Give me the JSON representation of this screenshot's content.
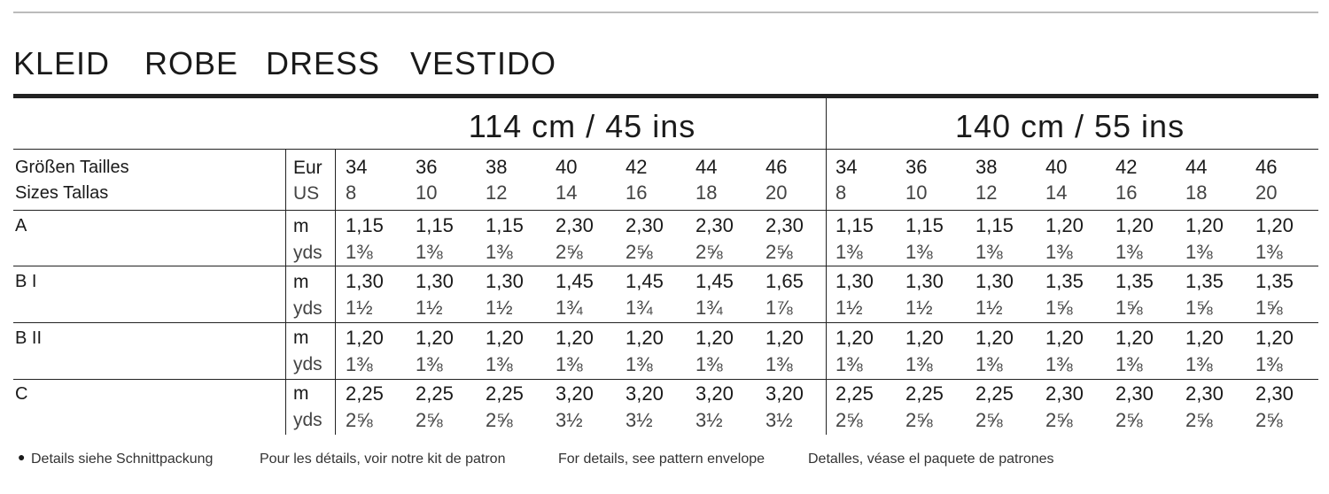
{
  "title": [
    "KLEID",
    "ROBE",
    "DRESS",
    "VESTIDO"
  ],
  "widths": [
    "114 cm / 45 ins",
    "140 cm / 55 ins"
  ],
  "size_header": {
    "label_1": "Größen Tailles",
    "label_2": "Sizes Tallas",
    "eur": "Eur",
    "us": "US"
  },
  "sizes": {
    "eur": [
      34,
      36,
      38,
      40,
      42,
      44,
      46,
      34,
      36,
      38,
      40,
      42,
      44,
      46
    ],
    "us": [
      8,
      10,
      12,
      14,
      16,
      18,
      20,
      8,
      10,
      12,
      14,
      16,
      18,
      20
    ]
  },
  "units": [
    "m",
    "yds"
  ],
  "rows": [
    {
      "view": "A",
      "m": [
        "1,15",
        "1,15",
        "1,15",
        "2,30",
        "2,30",
        "2,30",
        "2,30",
        "1,15",
        "1,15",
        "1,15",
        "1,20",
        "1,20",
        "1,20",
        "1,20"
      ],
      "yds": [
        "1⅜",
        "1⅜",
        "1⅜",
        "2⅝",
        "2⅝",
        "2⅝",
        "2⅝",
        "1⅜",
        "1⅜",
        "1⅜",
        "1⅜",
        "1⅜",
        "1⅜",
        "1⅜"
      ]
    },
    {
      "view": "B I",
      "m": [
        "1,30",
        "1,30",
        "1,30",
        "1,45",
        "1,45",
        "1,45",
        "1,65",
        "1,30",
        "1,30",
        "1,30",
        "1,35",
        "1,35",
        "1,35",
        "1,35"
      ],
      "yds": [
        "1½",
        "1½",
        "1½",
        "1¾",
        "1¾",
        "1¾",
        "1⅞",
        "1½",
        "1½",
        "1½",
        "1⅝",
        "1⅝",
        "1⅝",
        "1⅝"
      ]
    },
    {
      "view": "B II",
      "m": [
        "1,20",
        "1,20",
        "1,20",
        "1,20",
        "1,20",
        "1,20",
        "1,20",
        "1,20",
        "1,20",
        "1,20",
        "1,20",
        "1,20",
        "1,20",
        "1,20"
      ],
      "yds": [
        "1⅜",
        "1⅜",
        "1⅜",
        "1⅜",
        "1⅜",
        "1⅜",
        "1⅜",
        "1⅜",
        "1⅜",
        "1⅜",
        "1⅜",
        "1⅜",
        "1⅜",
        "1⅜"
      ]
    },
    {
      "view": "C",
      "m": [
        "2,25",
        "2,25",
        "2,25",
        "3,20",
        "3,20",
        "3,20",
        "3,20",
        "2,25",
        "2,25",
        "2,25",
        "2,30",
        "2,30",
        "2,30",
        "2,30"
      ],
      "yds": [
        "2⅝",
        "2⅝",
        "2⅝",
        "3½",
        "3½",
        "3½",
        "3½",
        "2⅝",
        "2⅝",
        "2⅝",
        "2⅝",
        "2⅝",
        "2⅝",
        "2⅝"
      ]
    }
  ],
  "footnote": [
    "Details siehe Schnittpackung",
    "Pour les détails, voir notre kit de patron",
    "For details, see pattern envelope",
    "Detalles, véase el paquete de patrones"
  ]
}
